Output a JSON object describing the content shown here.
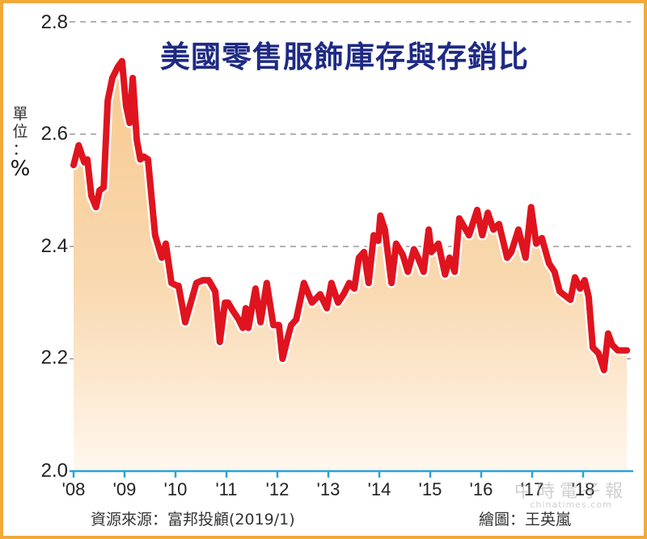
{
  "title": "美國零售服飾庫存與存銷比",
  "unit": {
    "label": "單位：",
    "chars": [
      "單",
      "位",
      "："
    ],
    "symbol": "%"
  },
  "y_ticks": [
    "2.8",
    "2.6",
    "2.4",
    "2.2",
    "2.0"
  ],
  "x_ticks": [
    "'08",
    "'09",
    "'10",
    "'11",
    "'12",
    "'13",
    "'14",
    "'15",
    "'16",
    "'17",
    "'18"
  ],
  "source": "資源來源：富邦投顧(2019/1)",
  "credit": "繪圖：王英嵐",
  "watermark": {
    "main": "中時電子報",
    "sub": "chinatimes.com"
  },
  "colors": {
    "line": "#e0141e",
    "fill_top": "#f7c98f",
    "fill_bottom": "#fff7ee",
    "axis": "#29a3dc",
    "grid": "#9a9a9a",
    "title": "#1e2a84",
    "border": "#f2a93b"
  },
  "chart_data": {
    "type": "area",
    "title": "美國零售服飾庫存與存銷比",
    "xlabel": "",
    "ylabel": "單位：%",
    "ylim": [
      2.0,
      2.8
    ],
    "xlim": [
      2008.0,
      2018.95
    ],
    "yticks": [
      2.0,
      2.2,
      2.4,
      2.6,
      2.8
    ],
    "xtick_labels": [
      "'08",
      "'09",
      "'10",
      "'11",
      "'12",
      "'13",
      "'14",
      "'15",
      "'16",
      "'17",
      "'18"
    ],
    "grid": "horizontal dashed",
    "legend": "none",
    "series": [
      {
        "name": "存銷比",
        "x": [
          2008.0,
          2008.1,
          2008.21,
          2008.27,
          2008.35,
          2008.44,
          2008.51,
          2008.59,
          2008.67,
          2008.76,
          2008.87,
          2008.95,
          2009.03,
          2009.1,
          2009.16,
          2009.24,
          2009.31,
          2009.38,
          2009.46,
          2009.6,
          2009.73,
          2009.81,
          2009.92,
          2010.03,
          2010.06,
          2010.19,
          2010.41,
          2010.54,
          2010.65,
          2010.78,
          2010.87,
          2010.97,
          2011.03,
          2011.13,
          2011.24,
          2011.32,
          2011.38,
          2011.43,
          2011.57,
          2011.67,
          2011.79,
          2011.92,
          2012.03,
          2012.1,
          2012.21,
          2012.27,
          2012.37,
          2012.52,
          2012.68,
          2012.84,
          2012.97,
          2013.06,
          2013.19,
          2013.3,
          2013.41,
          2013.51,
          2013.6,
          2013.7,
          2013.79,
          2013.89,
          2013.98,
          2014.02,
          2014.11,
          2014.24,
          2014.33,
          2014.46,
          2014.56,
          2014.68,
          2014.76,
          2014.87,
          2014.97,
          2015.02,
          2015.16,
          2015.29,
          2015.38,
          2015.48,
          2015.57,
          2015.76,
          2015.92,
          2016.02,
          2016.13,
          2016.24,
          2016.35,
          2016.51,
          2016.59,
          2016.73,
          2016.87,
          2016.98,
          2017.08,
          2017.19,
          2017.33,
          2017.44,
          2017.54,
          2017.75,
          2017.84,
          2017.94,
          2018.03,
          2018.11,
          2018.19,
          2018.3,
          2018.41,
          2018.49,
          2018.57,
          2018.68,
          2018.76,
          2018.86
        ],
        "values": [
          2.545,
          2.58,
          2.55,
          2.555,
          2.49,
          2.47,
          2.5,
          2.505,
          2.66,
          2.7,
          2.72,
          2.73,
          2.65,
          2.62,
          2.7,
          2.59,
          2.555,
          2.56,
          2.555,
          2.42,
          2.38,
          2.405,
          2.335,
          2.33,
          2.33,
          2.265,
          2.335,
          2.34,
          2.34,
          2.32,
          2.23,
          2.3,
          2.3,
          2.285,
          2.27,
          2.255,
          2.29,
          2.255,
          2.325,
          2.265,
          2.335,
          2.26,
          2.26,
          2.2,
          2.24,
          2.26,
          2.27,
          2.335,
          2.3,
          2.315,
          2.29,
          2.335,
          2.3,
          2.315,
          2.335,
          2.325,
          2.38,
          2.39,
          2.335,
          2.42,
          2.41,
          2.455,
          2.43,
          2.335,
          2.405,
          2.385,
          2.355,
          2.395,
          2.38,
          2.355,
          2.43,
          2.39,
          2.405,
          2.35,
          2.38,
          2.355,
          2.45,
          2.42,
          2.465,
          2.42,
          2.46,
          2.43,
          2.44,
          2.38,
          2.39,
          2.43,
          2.38,
          2.47,
          2.405,
          2.415,
          2.37,
          2.355,
          2.32,
          2.305,
          2.345,
          2.325,
          2.34,
          2.31,
          2.22,
          2.21,
          2.18,
          2.245,
          2.225,
          2.215,
          2.215,
          2.215
        ]
      }
    ]
  }
}
